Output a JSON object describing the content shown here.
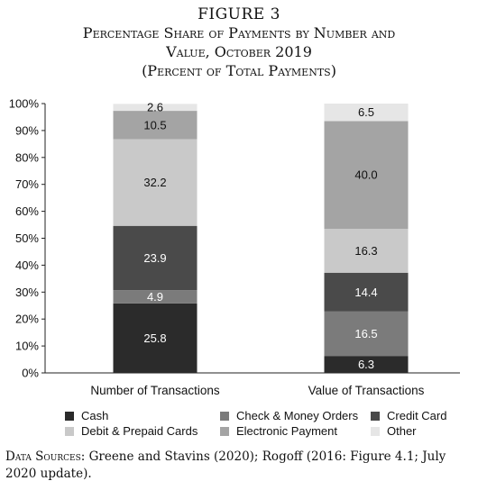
{
  "figure": {
    "label": "FIGURE 3",
    "title": "Percentage Share of Payments by Number and Value, October 2019",
    "subtitle": "(Percent of Total Payments)"
  },
  "chart_data": {
    "type": "bar",
    "stacked": true,
    "categories": [
      "Number of Transactions",
      "Value of Transactions"
    ],
    "series": [
      {
        "name": "Cash",
        "color": "#2b2b2b",
        "label_color": "#ffffff",
        "values": [
          25.8,
          6.3
        ]
      },
      {
        "name": "Check & Money Orders",
        "color": "#7b7b7b",
        "label_color": "#ffffff",
        "values": [
          4.9,
          16.5
        ]
      },
      {
        "name": "Credit Card",
        "color": "#4a4a4a",
        "label_color": "#ffffff",
        "values": [
          23.9,
          14.4
        ]
      },
      {
        "name": "Debit & Prepaid Cards",
        "color": "#c9c9c9",
        "label_color": "#111111",
        "values": [
          32.2,
          16.3
        ]
      },
      {
        "name": "Electronic Payment",
        "color": "#a4a4a4",
        "label_color": "#111111",
        "values": [
          10.5,
          40.0
        ]
      },
      {
        "name": "Other",
        "color": "#e6e6e6",
        "label_color": "#111111",
        "values": [
          2.6,
          6.5
        ]
      }
    ],
    "ylim": [
      0,
      100
    ],
    "yticks": [
      "0%",
      "10%",
      "20%",
      "30%",
      "40%",
      "50%",
      "60%",
      "70%",
      "80%",
      "90%",
      "100%"
    ],
    "legend_position": "bottom",
    "grid": false
  },
  "source": {
    "lead": "Data Sources:",
    "text": "Greene and Stavins (2020); Rogoff (2016: Figure 4.1; July 2020 update)."
  }
}
